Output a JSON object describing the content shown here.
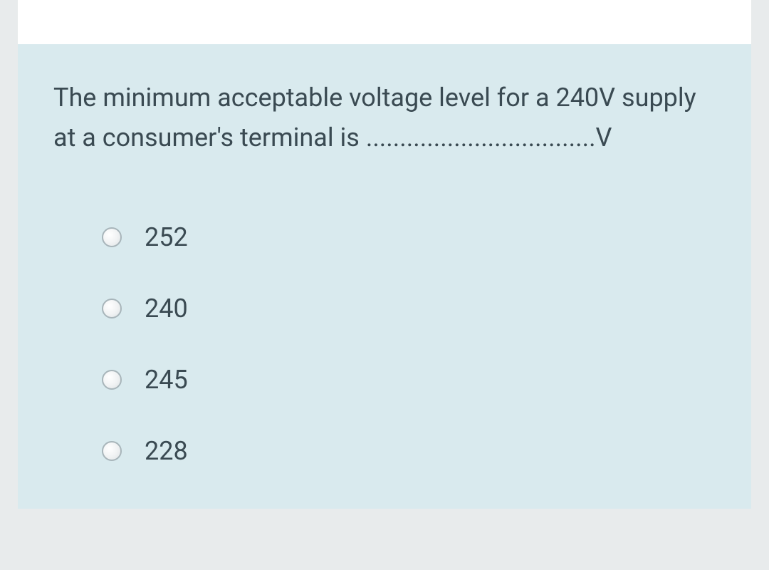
{
  "colors": {
    "page_background": "#e8ebec",
    "card_background": "#d9eaee",
    "white_strip": "#ffffff",
    "text": "#3a4a52",
    "radio_border": "#a8b5ba"
  },
  "typography": {
    "question_fontsize": 36,
    "option_fontsize": 36
  },
  "question": {
    "text": "The minimum acceptable voltage level for a 240V supply at a consumer's terminal is ..................................V"
  },
  "options": [
    {
      "label": "252",
      "selected": false
    },
    {
      "label": "240",
      "selected": false
    },
    {
      "label": "245",
      "selected": false
    },
    {
      "label": "228",
      "selected": false
    }
  ]
}
